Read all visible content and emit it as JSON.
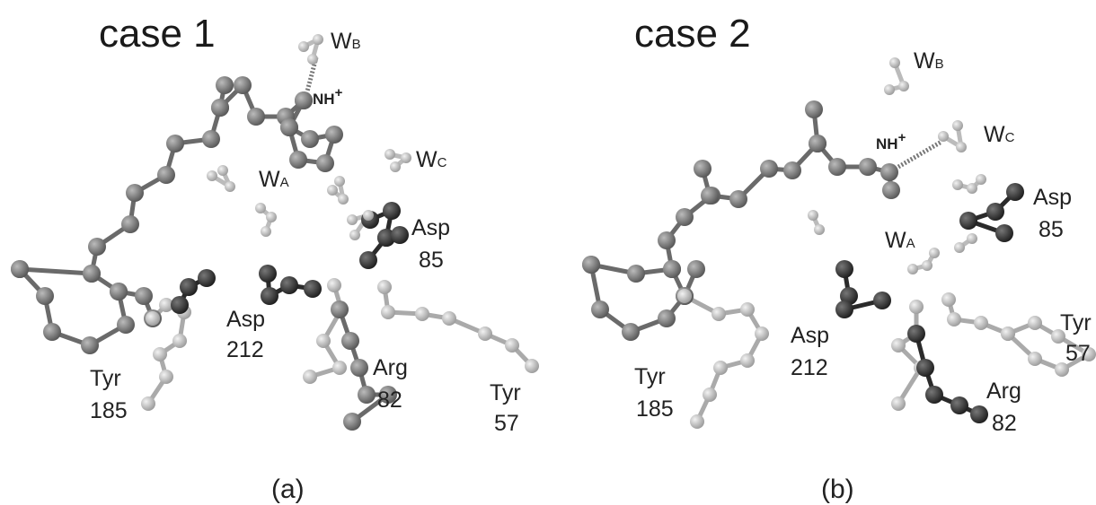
{
  "panels": [
    {
      "title": "case 1",
      "caption": "(a)",
      "nh": {
        "main": "NH",
        "sup": "+"
      },
      "waters": [
        {
          "main": "W",
          "sub": "B"
        },
        {
          "main": "W",
          "sub": "C"
        },
        {
          "main": "W",
          "sub": "A"
        }
      ],
      "residues": [
        {
          "name": "Asp",
          "number": "85"
        },
        {
          "name": "Asp",
          "number": "212"
        },
        {
          "name": "Tyr",
          "number": "185"
        },
        {
          "name": "Arg",
          "number": "82"
        },
        {
          "name": "Tyr",
          "number": "57"
        }
      ]
    },
    {
      "title": "case 2",
      "caption": "(b)",
      "nh": {
        "main": "NH",
        "sup": "+"
      },
      "waters": [
        {
          "main": "W",
          "sub": "B"
        },
        {
          "main": "W",
          "sub": "C"
        },
        {
          "main": "W",
          "sub": "A"
        }
      ],
      "residues": [
        {
          "name": "Asp",
          "number": "85"
        },
        {
          "name": "Asp",
          "number": "212"
        },
        {
          "name": "Tyr",
          "number": "185"
        },
        {
          "name": "Arg",
          "number": "82"
        },
        {
          "name": "Tyr",
          "number": "57"
        }
      ]
    }
  ]
}
